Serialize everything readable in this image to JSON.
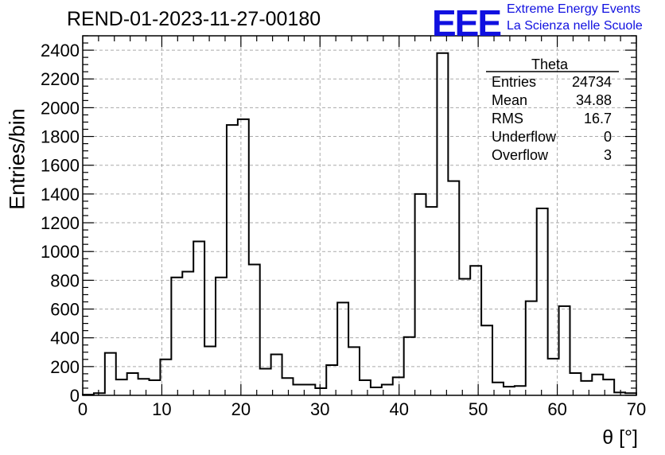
{
  "title": "REND-01-2023-11-27-00180",
  "brand": {
    "logo": "EEE",
    "line1": "Extreme Energy Events",
    "line2": "La Scienza nelle Scuole",
    "color": "#1010e0"
  },
  "stats": {
    "title": "Theta",
    "rows": [
      {
        "label": "Entries",
        "value": "24734"
      },
      {
        "label": "Mean",
        "value": "34.88"
      },
      {
        "label": "RMS",
        "value": "16.7"
      },
      {
        "label": "Underflow",
        "value": "0"
      },
      {
        "label": "Overflow",
        "value": "3"
      }
    ]
  },
  "chart_data": {
    "type": "bar",
    "style": "step-histogram",
    "title": "REND-01-2023-11-27-00180",
    "xlabel": "θ [°]",
    "ylabel": "Entries/bin",
    "xlim": [
      0,
      70
    ],
    "ylim": [
      0,
      2500
    ],
    "xticks": [
      0,
      10,
      20,
      30,
      40,
      50,
      60,
      70
    ],
    "yticks": [
      0,
      200,
      400,
      600,
      800,
      1000,
      1200,
      1400,
      1600,
      1800,
      2000,
      2200,
      2400
    ],
    "grid": true,
    "bin_width": 1.4,
    "bin_edges_start": 0,
    "values": [
      5,
      15,
      295,
      110,
      155,
      115,
      105,
      250,
      820,
      860,
      1070,
      340,
      820,
      1880,
      1920,
      910,
      185,
      285,
      120,
      75,
      75,
      50,
      210,
      645,
      335,
      105,
      55,
      75,
      125,
      405,
      1400,
      1310,
      2380,
      1490,
      810,
      900,
      485,
      90,
      60,
      65,
      655,
      1300,
      255,
      620,
      155,
      100,
      145,
      110,
      20,
      15
    ],
    "line_color": "#000000"
  }
}
